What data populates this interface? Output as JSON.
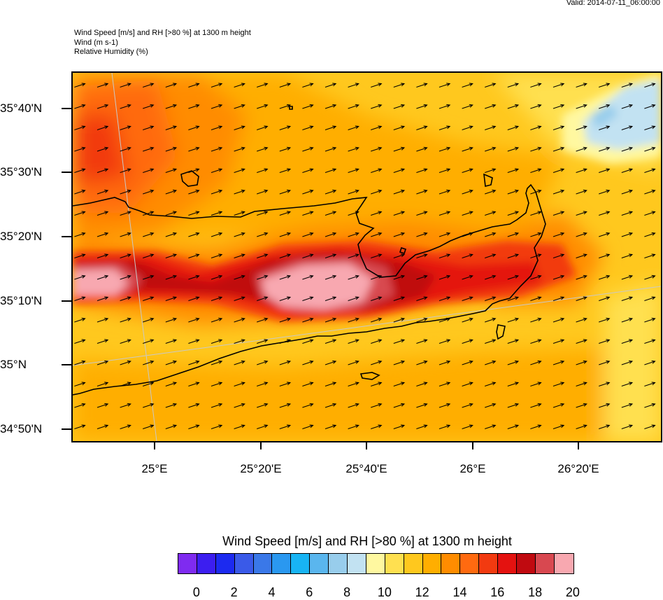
{
  "valid": "Valid: 2014-07-11_06:00:00",
  "titles": [
    "Wind Speed [m/s] and RH [>80 %] at 1300 m height",
    "Wind   (m s-1)",
    "Relative Humidity   (%)"
  ],
  "y_labels": [
    "35°40'N",
    "35°30'N",
    "35°20'N",
    "35°10'N",
    "35°N",
    "34°50'N"
  ],
  "x_labels": [
    "25°E",
    "25°20'E",
    "25°40'E",
    "26°E",
    "26°20'E"
  ],
  "colorbar": {
    "title": "Wind Speed [m/s] and RH [>80 %] at 1300 m height",
    "colors": [
      "#7f2bf0",
      "#3c1ef0",
      "#1c2af0",
      "#3a5ae8",
      "#3a78e8",
      "#2a98f0",
      "#18b4f4",
      "#5ab6ee",
      "#98cdec",
      "#c2e2f2",
      "#fff8a0",
      "#ffe050",
      "#ffc81e",
      "#ffae00",
      "#ff8c00",
      "#ff6a10",
      "#f23a10",
      "#e41210",
      "#c00a10",
      "#d84850",
      "#f8a8b0"
    ],
    "labels": [
      "0",
      "2",
      "4",
      "6",
      "8",
      "10",
      "12",
      "14",
      "16",
      "18",
      "20"
    ]
  },
  "wind_field": {
    "direction": "west-southwest",
    "arrow_rows": 17,
    "arrow_cols": 26
  }
}
